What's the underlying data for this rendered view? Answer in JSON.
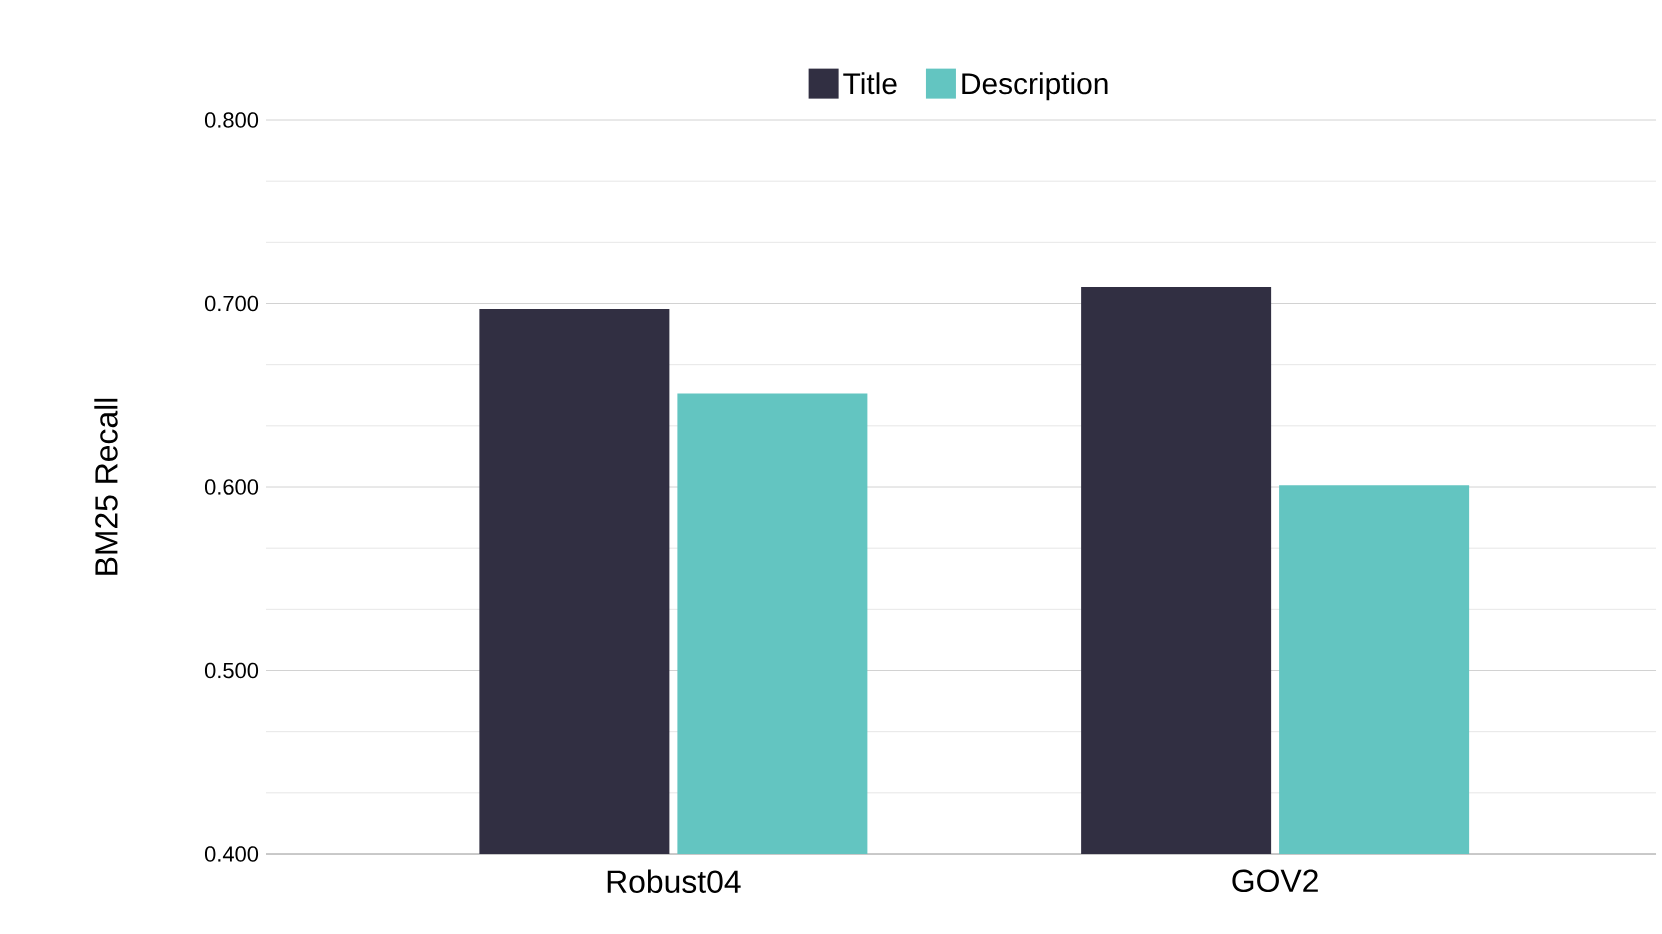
{
  "chart_data": {
    "type": "bar",
    "ylabel": "BM25 Recall",
    "categories": [
      "Robust04",
      "GOV2"
    ],
    "series": [
      {
        "name": "Title",
        "color": "#312f42",
        "values": [
          0.697,
          0.709
        ]
      },
      {
        "name": "Description",
        "color": "#63c5c1",
        "values": [
          0.651,
          0.601
        ]
      }
    ],
    "ylim": [
      0.4,
      0.8
    ],
    "yticks": [
      {
        "value": 0.4,
        "label": "0.400"
      },
      {
        "value": 0.5,
        "label": "0.500"
      },
      {
        "value": 0.6,
        "label": "0.600"
      },
      {
        "value": 0.7,
        "label": "0.700"
      },
      {
        "value": 0.8,
        "label": "0.800"
      }
    ],
    "grid": "y",
    "legend": "top"
  }
}
